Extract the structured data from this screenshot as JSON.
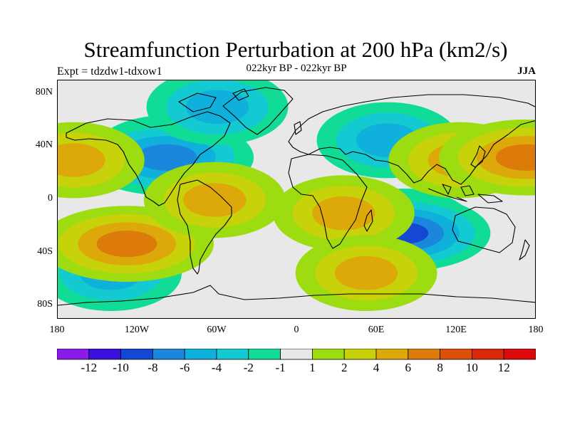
{
  "title": "Streamfunction Perturbation at 200 hPa (km2/s)",
  "subtitle_left": "Expt = tdzdw1-tdxow1",
  "subtitle_center": "022kyr BP - 022kyr BP",
  "subtitle_right": "JJA",
  "chart_data": {
    "type": "heatmap",
    "title": "Streamfunction Perturbation at 200 hPa (km2/s)",
    "projection": "cylindrical equidistant",
    "xlabel": "",
    "ylabel": "",
    "xlim": [
      -180,
      180
    ],
    "ylim": [
      -90,
      90
    ],
    "x_ticks": [
      {
        "value": -180,
        "label": "180"
      },
      {
        "value": -120,
        "label": "120W"
      },
      {
        "value": -60,
        "label": "60W"
      },
      {
        "value": 0,
        "label": "0"
      },
      {
        "value": 60,
        "label": "60E"
      },
      {
        "value": 120,
        "label": "120E"
      },
      {
        "value": 180,
        "label": "180"
      }
    ],
    "y_ticks": [
      {
        "value": 80,
        "label": "80N"
      },
      {
        "value": 40,
        "label": "40N"
      },
      {
        "value": 0,
        "label": "0"
      },
      {
        "value": -40,
        "label": "40S"
      },
      {
        "value": -80,
        "label": "80S"
      }
    ],
    "colorbar": {
      "levels": [
        -12,
        -10,
        -8,
        -6,
        -4,
        -2,
        -1,
        1,
        2,
        4,
        6,
        8,
        10,
        12
      ],
      "labels": [
        "-12",
        "-10",
        "-8",
        "-6",
        "-4",
        "-2",
        "-1",
        "1",
        "2",
        "4",
        "6",
        "8",
        "10",
        "12"
      ],
      "colors": [
        "#8a1be8",
        "#3a10dc",
        "#1448d2",
        "#1a86dc",
        "#10b0dc",
        "#14cad2",
        "#10dc96",
        "#e8e8e8",
        "#9ddc10",
        "#c8d20a",
        "#dca80a",
        "#dc7a0a",
        "#dc500a",
        "#dc280a",
        "#dc0a0a"
      ]
    },
    "features": [
      {
        "name": "north-america-low",
        "lon": -100,
        "lat": 35,
        "value": -4
      },
      {
        "name": "north-america-low-core",
        "lon": -98,
        "lat": 32,
        "value": -6
      },
      {
        "name": "arctic-canada-low",
        "lon": -60,
        "lat": 70,
        "value": -4
      },
      {
        "name": "central-asia-low",
        "lon": 68,
        "lat": 45,
        "value": -4
      },
      {
        "name": "indian-ocean-low",
        "lon": 80,
        "lat": -20,
        "value": -4
      },
      {
        "name": "indian-ocean-low-core",
        "lon": 80,
        "lat": -25,
        "value": -8
      },
      {
        "name": "south-pacific-low",
        "lon": -140,
        "lat": -55,
        "value": -4
      },
      {
        "name": "north-pacific-high",
        "lon": -168,
        "lat": 30,
        "value": 4
      },
      {
        "name": "south-pacific-high",
        "lon": -128,
        "lat": -33,
        "value": 6
      },
      {
        "name": "south-america-high",
        "lon": -62,
        "lat": 0,
        "value": 4
      },
      {
        "name": "africa-high",
        "lon": 35,
        "lat": -10,
        "value": 4
      },
      {
        "name": "east-asia-high",
        "lon": 122,
        "lat": 30,
        "value": 4
      },
      {
        "name": "west-pacific-high",
        "lon": 172,
        "lat": 32,
        "value": 6
      },
      {
        "name": "southern-ocean-high",
        "lon": 52,
        "lat": -55,
        "value": 4
      }
    ]
  }
}
